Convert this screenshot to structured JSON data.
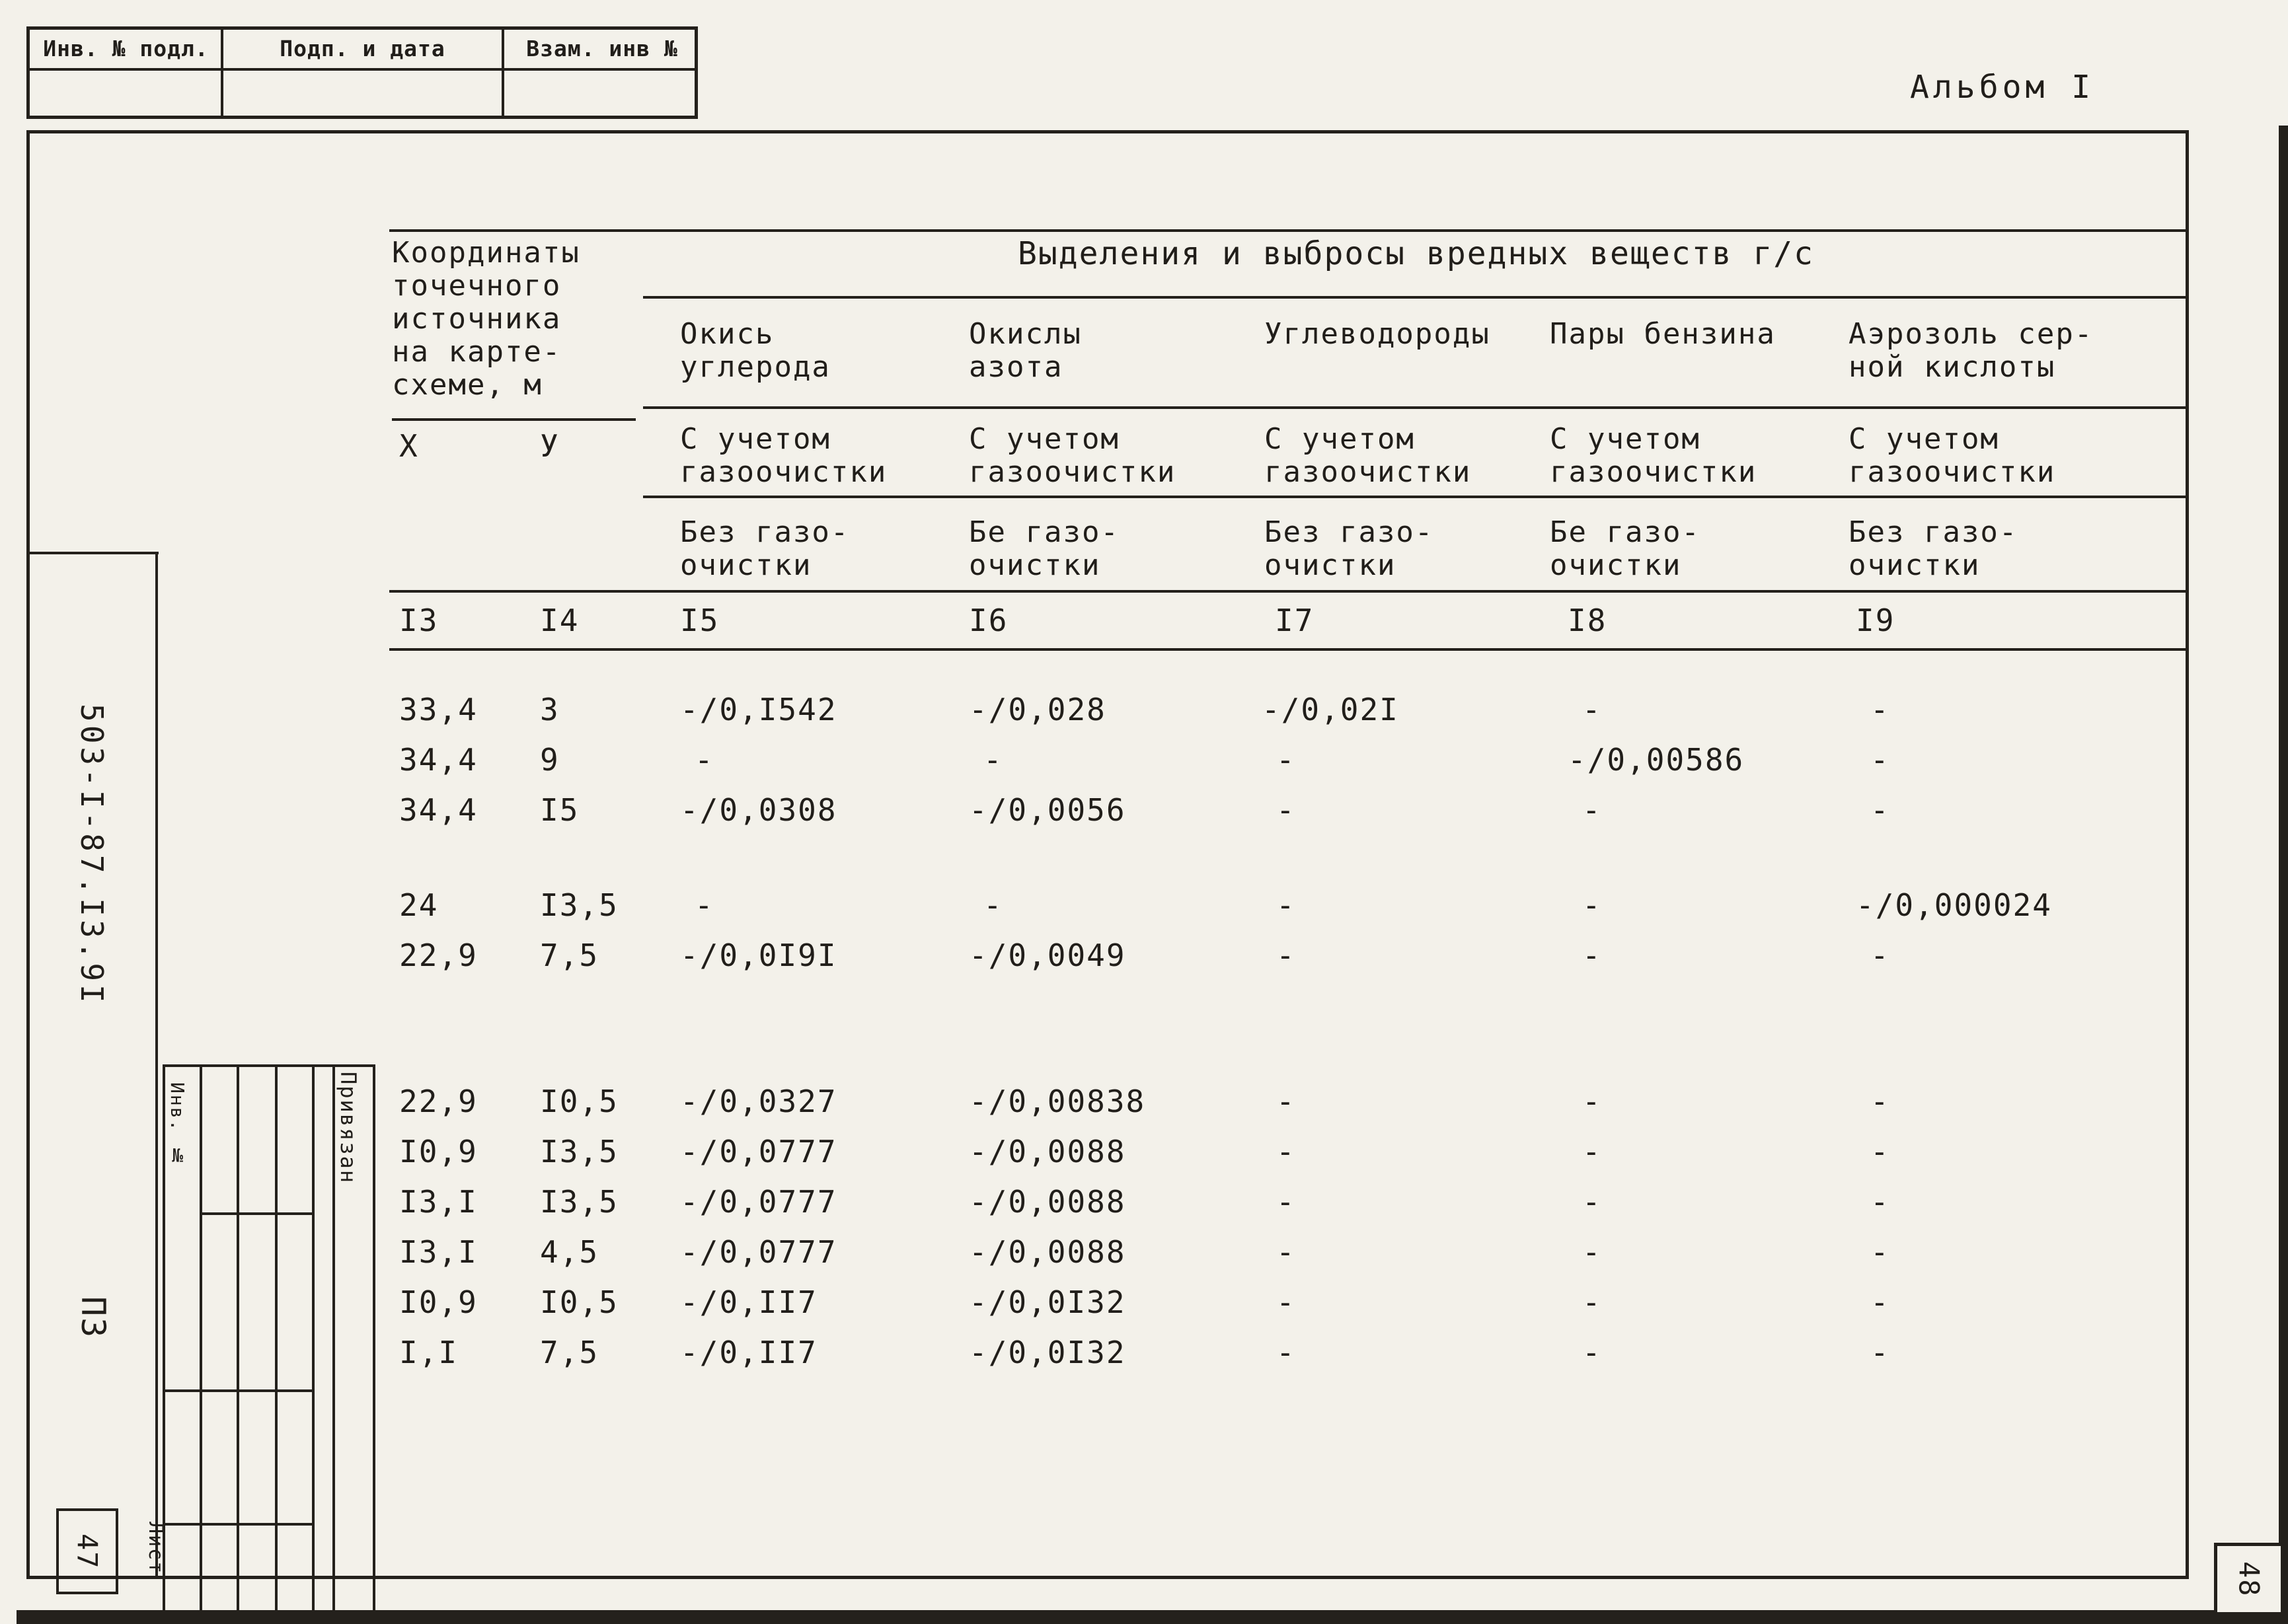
{
  "colors": {
    "ink": "#24211c",
    "paper": "#f3f1ea"
  },
  "page": {
    "album_label": "Альбом I",
    "doc_code": "503-I-87.I3.9I",
    "doc_type_label": "ПЗ",
    "sheet_word": "Лист",
    "sheet_number": "47",
    "next_sheet_number": "48"
  },
  "stamps": {
    "cells": [
      "Инв. № подл.",
      "Подп. и дата",
      "Взам. инв №"
    ],
    "inv_label": "Инв. №",
    "binding_label": "Привязан"
  },
  "table": {
    "coord_header": "Координаты\nточечного\nисточника\nна карте-\nсхеме, м",
    "coord_x": "X",
    "coord_y": "У",
    "main_header": "Выделения и выбросы вредных веществ г/с",
    "columns": [
      {
        "name": "Окись\nуглерода",
        "with_clean": "С учетом\nгазоочистки",
        "without_clean": "Без газо-\nочистки"
      },
      {
        "name": "Окислы\nазота",
        "with_clean": "С учетом\nгазоочистки",
        "without_clean": "Бе газо-\nочистки"
      },
      {
        "name": "Углеводороды",
        "with_clean": "С учетом\nгазоочистки",
        "without_clean": "Без газо-\nочистки"
      },
      {
        "name": "Пары бензина",
        "with_clean": "С учетом\nгазоочистки",
        "without_clean": "Бе газо-\nочистки"
      },
      {
        "name": "Аэрозоль сер-\nной кислоты",
        "with_clean": "С учетом\nгазоочистки",
        "without_clean": "Без газо-\nочистки"
      }
    ],
    "col_numbers": [
      "I3",
      "I4",
      "I5",
      "I6",
      "I7",
      "I8",
      "I9"
    ],
    "row_groups": [
      [
        [
          "33,4",
          "3",
          "-/0,I542",
          "-/0,028",
          "-/0,02I",
          "-",
          "-"
        ],
        [
          "34,4",
          "9",
          "-",
          "-",
          "-",
          "-/0,00586",
          "-"
        ],
        [
          "34,4",
          "I5",
          "-/0,0308",
          "-/0,0056",
          "-",
          "-",
          "-"
        ]
      ],
      [
        [
          "24",
          "I3,5",
          "-",
          "-",
          "-",
          "-",
          "-/0,000024"
        ],
        [
          "22,9",
          "7,5",
          "-/0,0I9I",
          "-/0,0049",
          "-",
          "-",
          "-"
        ]
      ],
      [
        [
          "22,9",
          "I0,5",
          "-/0,0327",
          "-/0,00838",
          "-",
          "-",
          "-"
        ],
        [
          "I0,9",
          "I3,5",
          "-/0,0777",
          "-/0,0088",
          "-",
          "-",
          "-"
        ],
        [
          "I3,I",
          "I3,5",
          "-/0,0777",
          "-/0,0088",
          "-",
          "-",
          "-"
        ],
        [
          "I3,I",
          "4,5",
          "-/0,0777",
          "-/0,0088",
          "-",
          "-",
          "-"
        ],
        [
          "I0,9",
          "I0,5",
          "-/0,II7",
          "-/0,0I32",
          "-",
          "-",
          "-"
        ],
        [
          "I,I",
          "7,5",
          "-/0,II7",
          "-/0,0I32",
          "-",
          "-",
          "-"
        ]
      ]
    ]
  }
}
